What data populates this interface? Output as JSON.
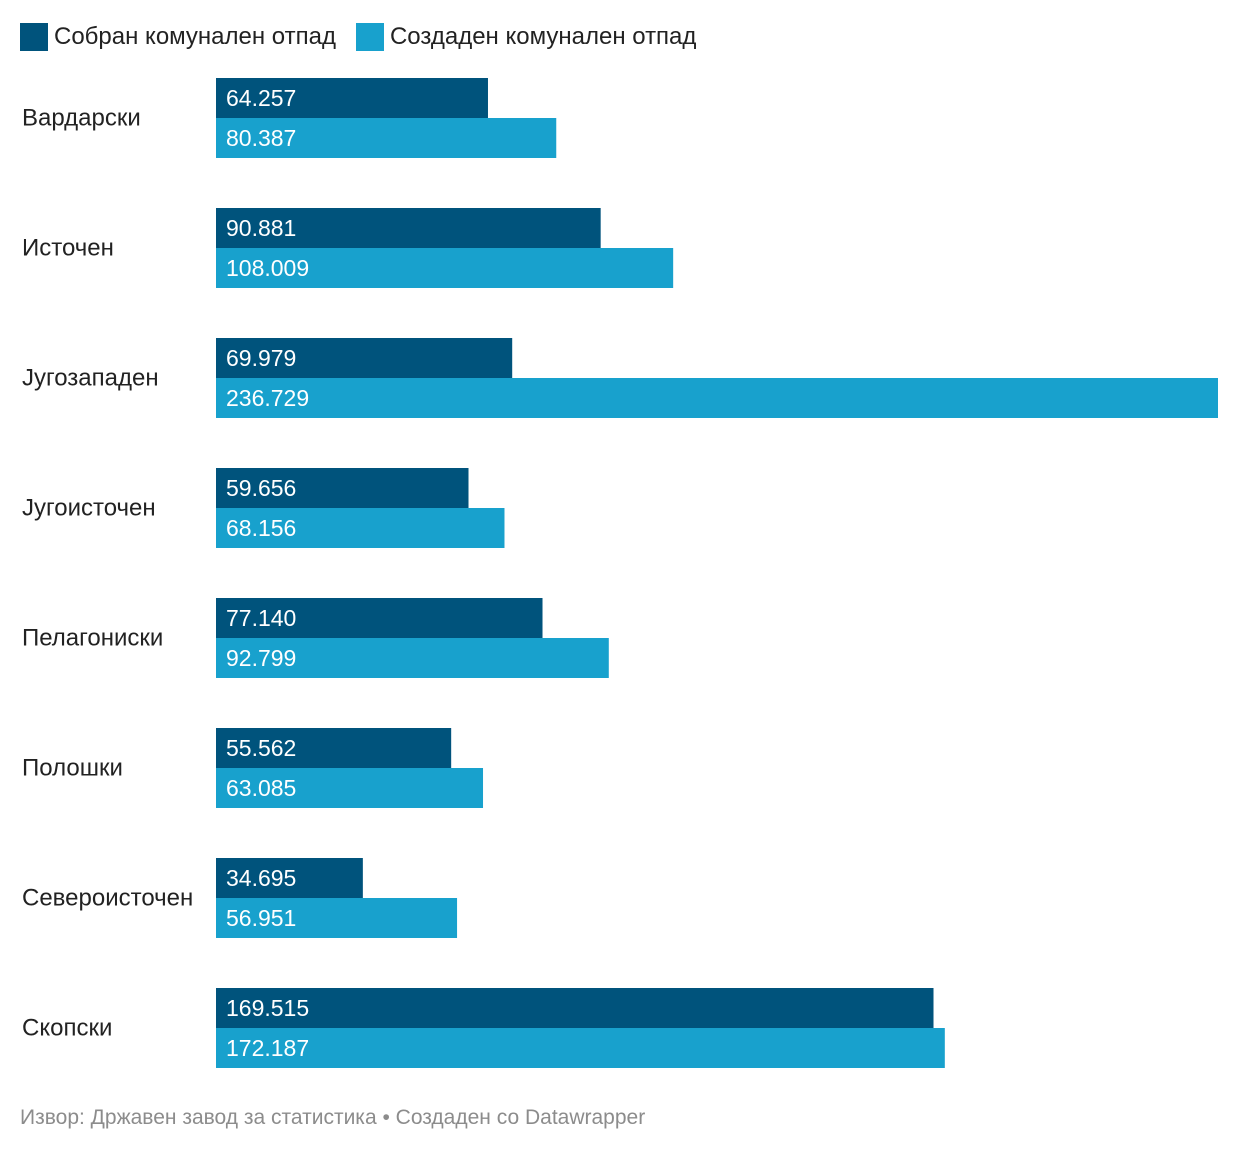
{
  "colors": {
    "series_collected": "#00537c",
    "series_generated": "#18a1cd",
    "label_text": "#222222",
    "value_text": "#ffffff",
    "footer_text": "#8c8c8c"
  },
  "legend": {
    "items": [
      {
        "label": "Собран комунален отпад",
        "color": "#00537c"
      },
      {
        "label": "Создаден комунален отпад",
        "color": "#18a1cd"
      }
    ]
  },
  "chart_data": {
    "type": "bar",
    "orientation": "horizontal",
    "title": "",
    "xlabel": "",
    "ylabel": "",
    "categories": [
      "Вардарски",
      "Источен",
      "Југозападен",
      "Југоисточен",
      "Пелагониски",
      "Полошки",
      "Североисточен",
      "Скопски"
    ],
    "series": [
      {
        "name": "Собран комунален отпад",
        "values": [
          64257,
          90881,
          69979,
          59656,
          77140,
          55562,
          34695,
          169515
        ],
        "labels": [
          "64.257",
          "90.881",
          "69.979",
          "59.656",
          "77.140",
          "55.562",
          "34.695",
          "169.515"
        ]
      },
      {
        "name": "Создаден комунален отпад",
        "values": [
          80387,
          108009,
          236729,
          68156,
          92799,
          63085,
          56951,
          172187
        ],
        "labels": [
          "80.387",
          "108.009",
          "236.729",
          "68.156",
          "92.799",
          "63.085",
          "56.951",
          "172.187"
        ]
      }
    ],
    "xlim": [
      0,
      236729
    ],
    "grid": false,
    "legend_position": "top-left"
  },
  "footer": {
    "source": "Извор: Државен завод за статистика • Создаден со Datawrapper"
  }
}
